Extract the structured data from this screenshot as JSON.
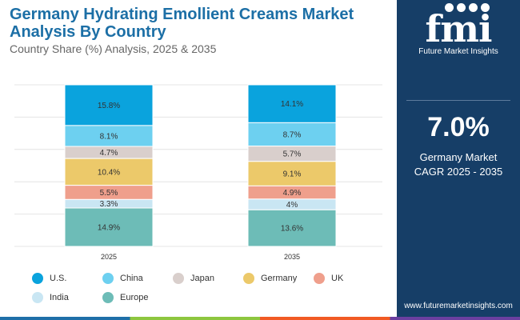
{
  "header": {
    "title": "Germany Hydrating Emollient Creams Market Analysis By Country",
    "subtitle": "Country Share (%) Analysis, 2025 & 2035"
  },
  "sidebar": {
    "logo_text": "fmi",
    "logo_caption": "Future Market Insights",
    "cagr_value": "7.0%",
    "cagr_label_line1": "Germany Market",
    "cagr_label_line2": "CAGR 2025 - 2035",
    "url": "www.futuremarketinsights.com",
    "background_color": "#163e67"
  },
  "chart_data": {
    "type": "bar",
    "stacked": true,
    "normalized_percent": true,
    "categories": [
      "2025",
      "2035"
    ],
    "series": [
      {
        "name": "U.S.",
        "color": "#0aa3dd",
        "values": [
          15.8,
          14.1
        ],
        "labels": [
          "15.8%",
          "14.1%"
        ]
      },
      {
        "name": "China",
        "color": "#6dd0f0",
        "values": [
          8.1,
          8.7
        ],
        "labels": [
          "8.1%",
          "8.7%"
        ]
      },
      {
        "name": "Japan",
        "color": "#d9cfcc",
        "values": [
          4.7,
          5.7
        ],
        "labels": [
          "4.7%",
          "5.7%"
        ]
      },
      {
        "name": "Germany",
        "color": "#ecc96a",
        "values": [
          10.4,
          9.1
        ],
        "labels": [
          "10.4%",
          "9.1%"
        ]
      },
      {
        "name": "UK",
        "color": "#ef9f8c",
        "values": [
          5.5,
          4.9
        ],
        "labels": [
          "5.5%",
          "4.9%"
        ]
      },
      {
        "name": "India",
        "color": "#c9e6f3",
        "values": [
          3.3,
          4.0
        ],
        "labels": [
          "3.3%",
          "4%"
        ]
      },
      {
        "name": "Europe",
        "color": "#6dbcb7",
        "values": [
          14.9,
          13.6
        ],
        "labels": [
          "14.9%",
          "13.6%"
        ]
      }
    ],
    "grid": true,
    "legend_position": "bottom"
  }
}
